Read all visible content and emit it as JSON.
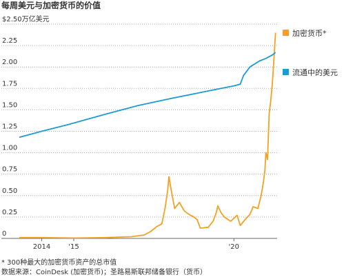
{
  "chart_data": {
    "type": "line",
    "title": "每周美元与加密货币的价值",
    "notes": [
      "* 300种最大的加密货币资产的总市值",
      "数据来源：CoinDesk (加密货币)；圣路易斯联邦储备银行（货币）"
    ],
    "xlim": [
      2013.3,
      2021.35
    ],
    "xticks": [
      2014,
      {
        "value": 2015,
        "label": "'15"
      },
      {
        "value": 2020,
        "label": "'20"
      }
    ],
    "ylim": [
      0,
      2.5
    ],
    "yticks": [
      0,
      0.25,
      {
        "value": 0.5,
        "label": "0.50"
      },
      0.75,
      {
        "value": 1,
        "label": "1.00"
      },
      1.25,
      {
        "value": 1.5,
        "label": "1.50"
      },
      1.75,
      {
        "value": 2,
        "label": "2.00"
      },
      2.25,
      {
        "value": 2.5,
        "label": "$2.50万亿美元"
      }
    ],
    "grid": true,
    "series": [
      {
        "name": "加密货币*",
        "color": "#f5a01e",
        "x": [
          2013.3,
          2014.0,
          2015.0,
          2016.0,
          2016.8,
          2017.2,
          2017.4,
          2017.6,
          2017.75,
          2017.85,
          2017.93,
          2017.97,
          2018.05,
          2018.1,
          2018.15,
          2018.3,
          2018.45,
          2018.6,
          2018.75,
          2018.85,
          2018.95,
          2019.2,
          2019.35,
          2019.45,
          2019.5,
          2019.6,
          2019.7,
          2019.9,
          2020.1,
          2020.2,
          2020.35,
          2020.5,
          2020.6,
          2020.75,
          2020.85,
          2020.92,
          2020.97,
          2021.0,
          2021.05,
          2021.1,
          2021.15,
          2021.2,
          2021.25,
          2021.3
        ],
        "values": [
          0.01,
          0.01,
          0.005,
          0.01,
          0.02,
          0.04,
          0.08,
          0.14,
          0.17,
          0.35,
          0.55,
          0.72,
          0.55,
          0.45,
          0.35,
          0.42,
          0.32,
          0.28,
          0.25,
          0.22,
          0.12,
          0.13,
          0.2,
          0.3,
          0.38,
          0.3,
          0.25,
          0.2,
          0.27,
          0.15,
          0.22,
          0.28,
          0.37,
          0.35,
          0.5,
          0.65,
          0.8,
          1.0,
          0.92,
          1.45,
          1.6,
          1.8,
          2.1,
          2.4
        ]
      },
      {
        "name": "流通中的美元",
        "color": "#1b9ad6",
        "x": [
          2013.3,
          2014.0,
          2014.85,
          2016.0,
          2017.0,
          2018.0,
          2019.2,
          2020.0,
          2020.2,
          2020.3,
          2020.5,
          2020.8,
          2021.0,
          2021.2,
          2021.3
        ],
        "values": [
          1.18,
          1.25,
          1.33,
          1.45,
          1.55,
          1.63,
          1.72,
          1.78,
          1.8,
          1.9,
          2.0,
          2.07,
          2.1,
          2.14,
          2.17
        ]
      }
    ]
  }
}
